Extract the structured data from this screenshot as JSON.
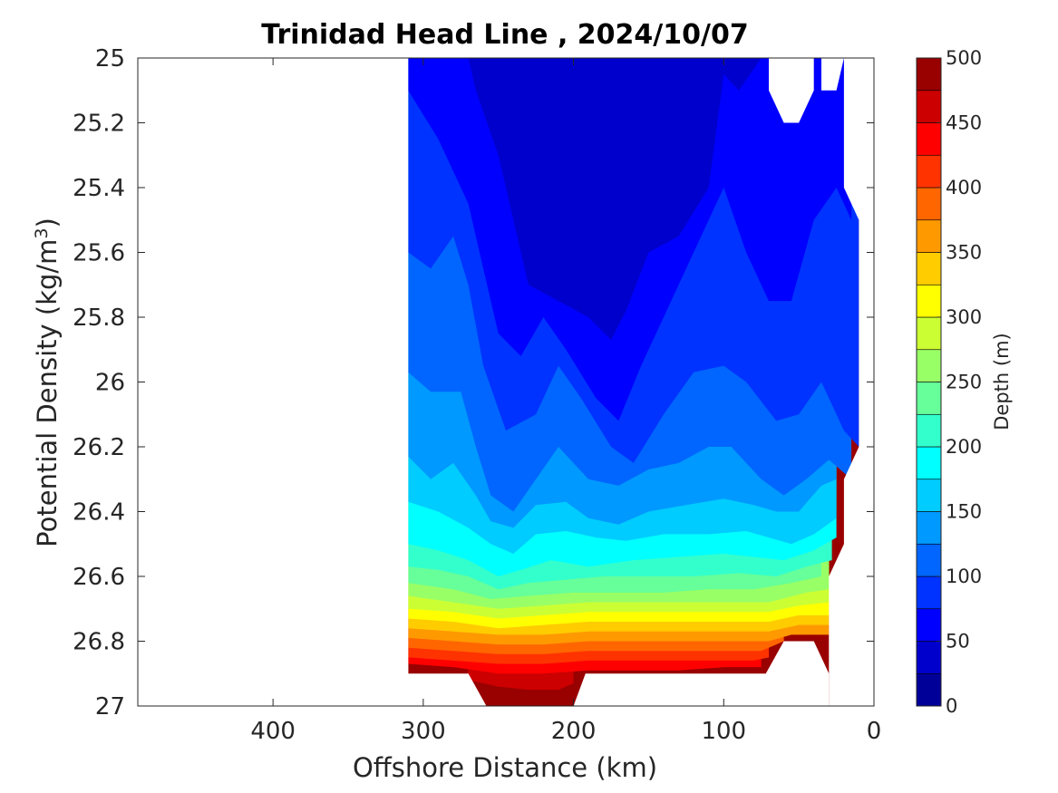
{
  "chart_data": {
    "type": "contourf",
    "title": "Trinidad Head Line , 2024/10/07",
    "xlabel": "Offshore Distance (km)",
    "ylabel": "Potential Density (kg/m",
    "ylabel_sup": "3",
    "ylabel_tail": ")",
    "xlim": [
      490,
      0
    ],
    "ylim": [
      27,
      25
    ],
    "x_reversed": true,
    "y_reversed": true,
    "x_ticks": [
      400,
      300,
      200,
      100,
      0
    ],
    "y_ticks": [
      25,
      25.2,
      25.4,
      25.6,
      25.8,
      26,
      26.2,
      26.4,
      26.6,
      26.8,
      27
    ],
    "y_tick_labels": [
      "25",
      "25.2",
      "25.4",
      "25.6",
      "25.8",
      "26",
      "26.2",
      "26.4",
      "26.6",
      "26.8",
      "27"
    ],
    "grid": false,
    "colorbar": {
      "label": "Depth (m)",
      "range": [
        0,
        500
      ],
      "levels_step": 25,
      "ticks": [
        0,
        50,
        100,
        150,
        200,
        250,
        300,
        350,
        400,
        450,
        500
      ],
      "colormap": "jet"
    },
    "section_extent_km": [
      310,
      10
    ],
    "contour_boundaries": [
      {
        "depth": 25,
        "points": [
          [
            310,
            25.0
          ],
          [
            300,
            25.0
          ],
          [
            280,
            25.0
          ],
          [
            270,
            25.0
          ]
        ]
      },
      {
        "depth": 50,
        "points": [
          [
            310,
            25.0
          ],
          [
            270,
            25.0
          ],
          [
            265,
            25.1
          ],
          [
            250,
            25.3
          ],
          [
            240,
            25.5
          ],
          [
            230,
            25.7
          ],
          [
            210,
            25.75
          ],
          [
            190,
            25.8
          ],
          [
            175,
            25.87
          ],
          [
            165,
            25.78
          ],
          [
            150,
            25.6
          ],
          [
            130,
            25.55
          ],
          [
            110,
            25.4
          ],
          [
            100,
            25.05
          ],
          [
            90,
            25.1
          ],
          [
            75,
            25.0
          ],
          [
            70,
            25.0
          ]
        ]
      },
      {
        "depth": 75,
        "points": [
          [
            310,
            25.1
          ],
          [
            290,
            25.25
          ],
          [
            270,
            25.45
          ],
          [
            260,
            25.65
          ],
          [
            250,
            25.85
          ],
          [
            235,
            25.92
          ],
          [
            220,
            25.8
          ],
          [
            205,
            25.9
          ],
          [
            185,
            26.05
          ],
          [
            170,
            26.12
          ],
          [
            155,
            25.95
          ],
          [
            140,
            25.8
          ],
          [
            120,
            25.6
          ],
          [
            100,
            25.4
          ],
          [
            85,
            25.6
          ],
          [
            70,
            25.75
          ],
          [
            55,
            25.75
          ],
          [
            40,
            25.5
          ],
          [
            25,
            25.4
          ],
          [
            15,
            25.5
          ]
        ]
      },
      {
        "depth": 100,
        "points": [
          [
            310,
            25.6
          ],
          [
            295,
            25.65
          ],
          [
            280,
            25.55
          ],
          [
            270,
            25.7
          ],
          [
            260,
            25.95
          ],
          [
            245,
            26.15
          ],
          [
            225,
            26.1
          ],
          [
            210,
            25.95
          ],
          [
            195,
            26.05
          ],
          [
            175,
            26.2
          ],
          [
            160,
            26.25
          ],
          [
            140,
            26.1
          ],
          [
            120,
            25.97
          ],
          [
            100,
            25.95
          ],
          [
            85,
            26.0
          ],
          [
            65,
            26.12
          ],
          [
            50,
            26.1
          ],
          [
            35,
            26.0
          ],
          [
            20,
            26.15
          ],
          [
            10,
            26.2
          ]
        ]
      },
      {
        "depth": 125,
        "points": [
          [
            310,
            25.97
          ],
          [
            295,
            26.03
          ],
          [
            275,
            26.03
          ],
          [
            265,
            26.2
          ],
          [
            255,
            26.35
          ],
          [
            240,
            26.4
          ],
          [
            225,
            26.3
          ],
          [
            210,
            26.2
          ],
          [
            190,
            26.3
          ],
          [
            170,
            26.32
          ],
          [
            150,
            26.27
          ],
          [
            130,
            26.25
          ],
          [
            110,
            26.2
          ],
          [
            95,
            26.2
          ],
          [
            75,
            26.3
          ],
          [
            60,
            26.35
          ],
          [
            45,
            26.3
          ],
          [
            30,
            26.24
          ],
          [
            15,
            26.3
          ]
        ]
      },
      {
        "depth": 150,
        "points": [
          [
            310,
            26.23
          ],
          [
            295,
            26.3
          ],
          [
            280,
            26.25
          ],
          [
            265,
            26.35
          ],
          [
            255,
            26.43
          ],
          [
            240,
            26.45
          ],
          [
            225,
            26.38
          ],
          [
            205,
            26.37
          ],
          [
            190,
            26.42
          ],
          [
            170,
            26.44
          ],
          [
            150,
            26.4
          ],
          [
            125,
            26.38
          ],
          [
            100,
            26.36
          ],
          [
            80,
            26.38
          ],
          [
            65,
            26.4
          ],
          [
            50,
            26.4
          ],
          [
            35,
            26.32
          ],
          [
            25,
            26.3
          ]
        ]
      },
      {
        "depth": 175,
        "points": [
          [
            310,
            26.37
          ],
          [
            290,
            26.4
          ],
          [
            270,
            26.45
          ],
          [
            255,
            26.5
          ],
          [
            240,
            26.53
          ],
          [
            225,
            26.47
          ],
          [
            205,
            26.46
          ],
          [
            185,
            26.48
          ],
          [
            165,
            26.49
          ],
          [
            140,
            26.47
          ],
          [
            110,
            26.47
          ],
          [
            85,
            26.46
          ],
          [
            70,
            26.48
          ],
          [
            55,
            26.5
          ],
          [
            40,
            26.47
          ],
          [
            25,
            26.42
          ]
        ]
      },
      {
        "depth": 200,
        "points": [
          [
            310,
            26.5
          ],
          [
            290,
            26.52
          ],
          [
            270,
            26.55
          ],
          [
            250,
            26.6
          ],
          [
            235,
            26.58
          ],
          [
            215,
            26.55
          ],
          [
            190,
            26.57
          ],
          [
            160,
            26.55
          ],
          [
            130,
            26.54
          ],
          [
            100,
            26.53
          ],
          [
            80,
            26.54
          ],
          [
            60,
            26.55
          ],
          [
            40,
            26.52
          ],
          [
            25,
            26.48
          ]
        ]
      },
      {
        "depth": 225,
        "points": [
          [
            310,
            26.57
          ],
          [
            290,
            26.58
          ],
          [
            270,
            26.6
          ],
          [
            250,
            26.64
          ],
          [
            230,
            26.62
          ],
          [
            205,
            26.61
          ],
          [
            180,
            26.6
          ],
          [
            150,
            26.6
          ],
          [
            120,
            26.6
          ],
          [
            90,
            26.59
          ],
          [
            65,
            26.6
          ],
          [
            45,
            26.57
          ],
          [
            28,
            26.55
          ]
        ]
      },
      {
        "depth": 250,
        "points": [
          [
            310,
            26.62
          ],
          [
            280,
            26.64
          ],
          [
            255,
            26.67
          ],
          [
            230,
            26.66
          ],
          [
            200,
            26.65
          ],
          [
            170,
            26.65
          ],
          [
            140,
            26.65
          ],
          [
            110,
            26.64
          ],
          [
            80,
            26.64
          ],
          [
            55,
            26.62
          ],
          [
            35,
            26.6
          ]
        ]
      },
      {
        "depth": 275,
        "points": [
          [
            310,
            26.66
          ],
          [
            280,
            26.68
          ],
          [
            250,
            26.7
          ],
          [
            220,
            26.69
          ],
          [
            190,
            26.68
          ],
          [
            160,
            26.68
          ],
          [
            130,
            26.68
          ],
          [
            100,
            26.68
          ],
          [
            70,
            26.68
          ],
          [
            45,
            26.65
          ],
          [
            30,
            26.64
          ]
        ]
      },
      {
        "depth": 300,
        "points": [
          [
            310,
            26.7
          ],
          [
            280,
            26.71
          ],
          [
            250,
            26.73
          ],
          [
            220,
            26.72
          ],
          [
            190,
            26.71
          ],
          [
            160,
            26.71
          ],
          [
            130,
            26.71
          ],
          [
            100,
            26.71
          ],
          [
            70,
            26.71
          ],
          [
            50,
            26.69
          ],
          [
            30,
            26.68
          ]
        ]
      },
      {
        "depth": 325,
        "points": [
          [
            310,
            26.73
          ],
          [
            280,
            26.74
          ],
          [
            250,
            26.76
          ],
          [
            220,
            26.75
          ],
          [
            190,
            26.74
          ],
          [
            160,
            26.74
          ],
          [
            130,
            26.74
          ],
          [
            100,
            26.74
          ],
          [
            70,
            26.74
          ],
          [
            50,
            26.72
          ],
          [
            30,
            26.72
          ]
        ]
      },
      {
        "depth": 350,
        "points": [
          [
            310,
            26.76
          ],
          [
            280,
            26.77
          ],
          [
            250,
            26.78
          ],
          [
            220,
            26.78
          ],
          [
            190,
            26.77
          ],
          [
            160,
            26.77
          ],
          [
            130,
            26.77
          ],
          [
            100,
            26.77
          ],
          [
            70,
            26.77
          ],
          [
            50,
            26.75
          ],
          [
            30,
            26.75
          ]
        ]
      },
      {
        "depth": 375,
        "points": [
          [
            310,
            26.79
          ],
          [
            280,
            26.8
          ],
          [
            250,
            26.81
          ],
          [
            220,
            26.81
          ],
          [
            190,
            26.8
          ],
          [
            160,
            26.8
          ],
          [
            130,
            26.8
          ],
          [
            100,
            26.8
          ],
          [
            70,
            26.8
          ],
          [
            55,
            26.78
          ],
          [
            30,
            26.78
          ]
        ]
      },
      {
        "depth": 400,
        "points": [
          [
            310,
            26.82
          ],
          [
            280,
            26.83
          ],
          [
            250,
            26.84
          ],
          [
            220,
            26.84
          ],
          [
            190,
            26.83
          ],
          [
            160,
            26.83
          ],
          [
            130,
            26.83
          ],
          [
            100,
            26.83
          ],
          [
            75,
            26.83
          ],
          [
            65,
            26.81
          ],
          [
            60,
            26.8
          ]
        ]
      },
      {
        "depth": 425,
        "points": [
          [
            310,
            26.85
          ],
          [
            280,
            26.86
          ],
          [
            250,
            26.87
          ],
          [
            220,
            26.87
          ],
          [
            190,
            26.86
          ],
          [
            160,
            26.86
          ],
          [
            130,
            26.86
          ],
          [
            100,
            26.86
          ],
          [
            80,
            26.86
          ],
          [
            70,
            26.85
          ]
        ]
      },
      {
        "depth": 450,
        "points": [
          [
            310,
            26.87
          ],
          [
            280,
            26.88
          ],
          [
            250,
            26.9
          ],
          [
            220,
            26.9
          ],
          [
            190,
            26.89
          ],
          [
            160,
            26.89
          ],
          [
            130,
            26.89
          ],
          [
            100,
            26.88
          ],
          [
            75,
            26.88
          ]
        ]
      },
      {
        "depth": 475,
        "points": [
          [
            270,
            26.92
          ],
          [
            250,
            26.94
          ],
          [
            230,
            26.95
          ],
          [
            210,
            26.95
          ],
          [
            200,
            26.93
          ]
        ]
      }
    ]
  }
}
